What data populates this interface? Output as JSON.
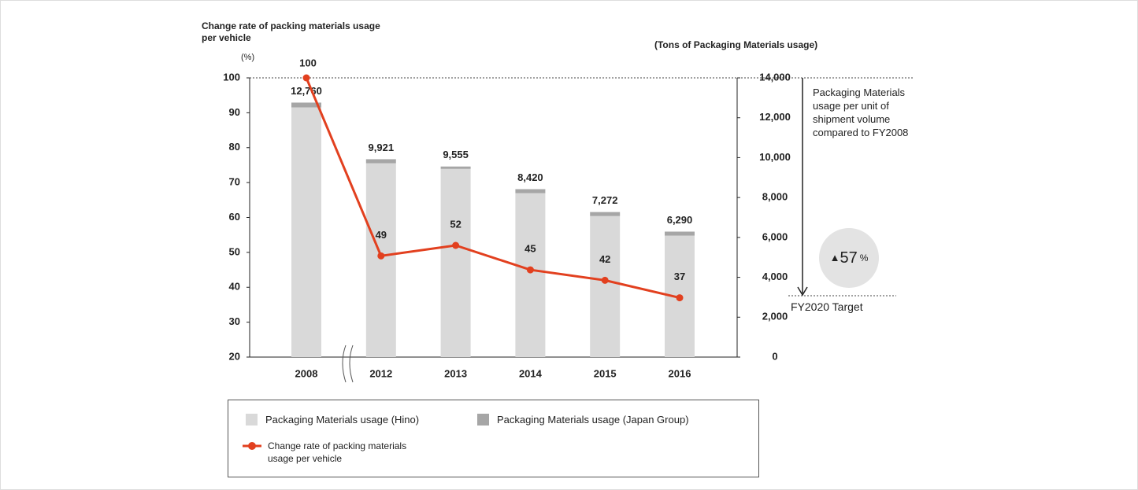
{
  "chart_data": {
    "type": "bar",
    "y_label": "Change rate of packing materials usage per vehicle",
    "y_unit": "(%)",
    "y2_label": "(Tons of Packaging Materials usage)",
    "categories": [
      "2008",
      "2012",
      "2013",
      "2014",
      "2015",
      "2016"
    ],
    "series": [
      {
        "name": "Packaging Materials usage (Hino)",
        "color": "#d9d9d9",
        "axis": "y2",
        "type": "bar",
        "values": [
          12520,
          9721,
          9435,
          8220,
          7072,
          6090
        ]
      },
      {
        "name": "Packaging Materials usage (Japan Group)",
        "color": "#a6a6a6",
        "axis": "y2",
        "type": "bar",
        "values": [
          240,
          200,
          120,
          200,
          200,
          200
        ]
      },
      {
        "name": "Change rate of packing materials usage per vehicle",
        "color": "#e2401f",
        "type": "line",
        "values": [
          100,
          49,
          52,
          45,
          42,
          37
        ]
      }
    ],
    "bar_totals": [
      12760,
      9921,
      9555,
      8420,
      7272,
      6290
    ],
    "bar_total_labels": [
      "12,760",
      "9,921",
      "9,555",
      "8,420",
      "7,272",
      "6,290"
    ],
    "ylim": [
      20,
      100
    ],
    "yticks": [
      20,
      30,
      40,
      50,
      60,
      70,
      80,
      90,
      100
    ],
    "y2lim": [
      0,
      14000
    ],
    "y2ticks": [
      0,
      {
        "value": 2000,
        "label": "2,000"
      },
      {
        "value": 4000,
        "label": "4,000"
      },
      {
        "value": 6000,
        "label": "6,000"
      },
      {
        "value": 8000,
        "label": "8,000"
      },
      {
        "value": 10000,
        "label": "10,000"
      },
      {
        "value": 12000,
        "label": "12,000"
      },
      {
        "value": 14000,
        "label": "14,000"
      }
    ],
    "annotations": {
      "note": "Packaging Materials usage per unit of shipment volume compared to FY2008",
      "reduction": {
        "marker": "▲",
        "value": 57,
        "unit": "%"
      },
      "target": "FY2020 Target"
    }
  }
}
